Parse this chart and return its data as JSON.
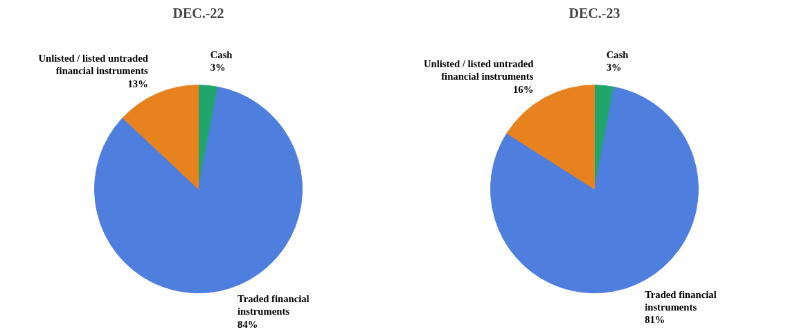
{
  "chart_data": [
    {
      "type": "pie",
      "title": "DEC.-22",
      "categories": [
        "Cash",
        "Traded financial instruments",
        "Unlisted / listed untraded financial instruments"
      ],
      "values": [
        3,
        84,
        13
      ],
      "colors": [
        "#20a66a",
        "#4e7ede",
        "#e8821f"
      ],
      "value_labels": [
        "3%",
        "84%",
        "13%"
      ]
    },
    {
      "type": "pie",
      "title": "DEC.-23",
      "categories": [
        "Cash",
        "Traded financial instruments",
        "Unlisted / listed untraded financial instruments"
      ],
      "values": [
        3,
        81,
        16
      ],
      "colors": [
        "#20a66a",
        "#4e7ede",
        "#e8821f"
      ],
      "value_labels": [
        "3%",
        "81%",
        "16%"
      ]
    }
  ]
}
